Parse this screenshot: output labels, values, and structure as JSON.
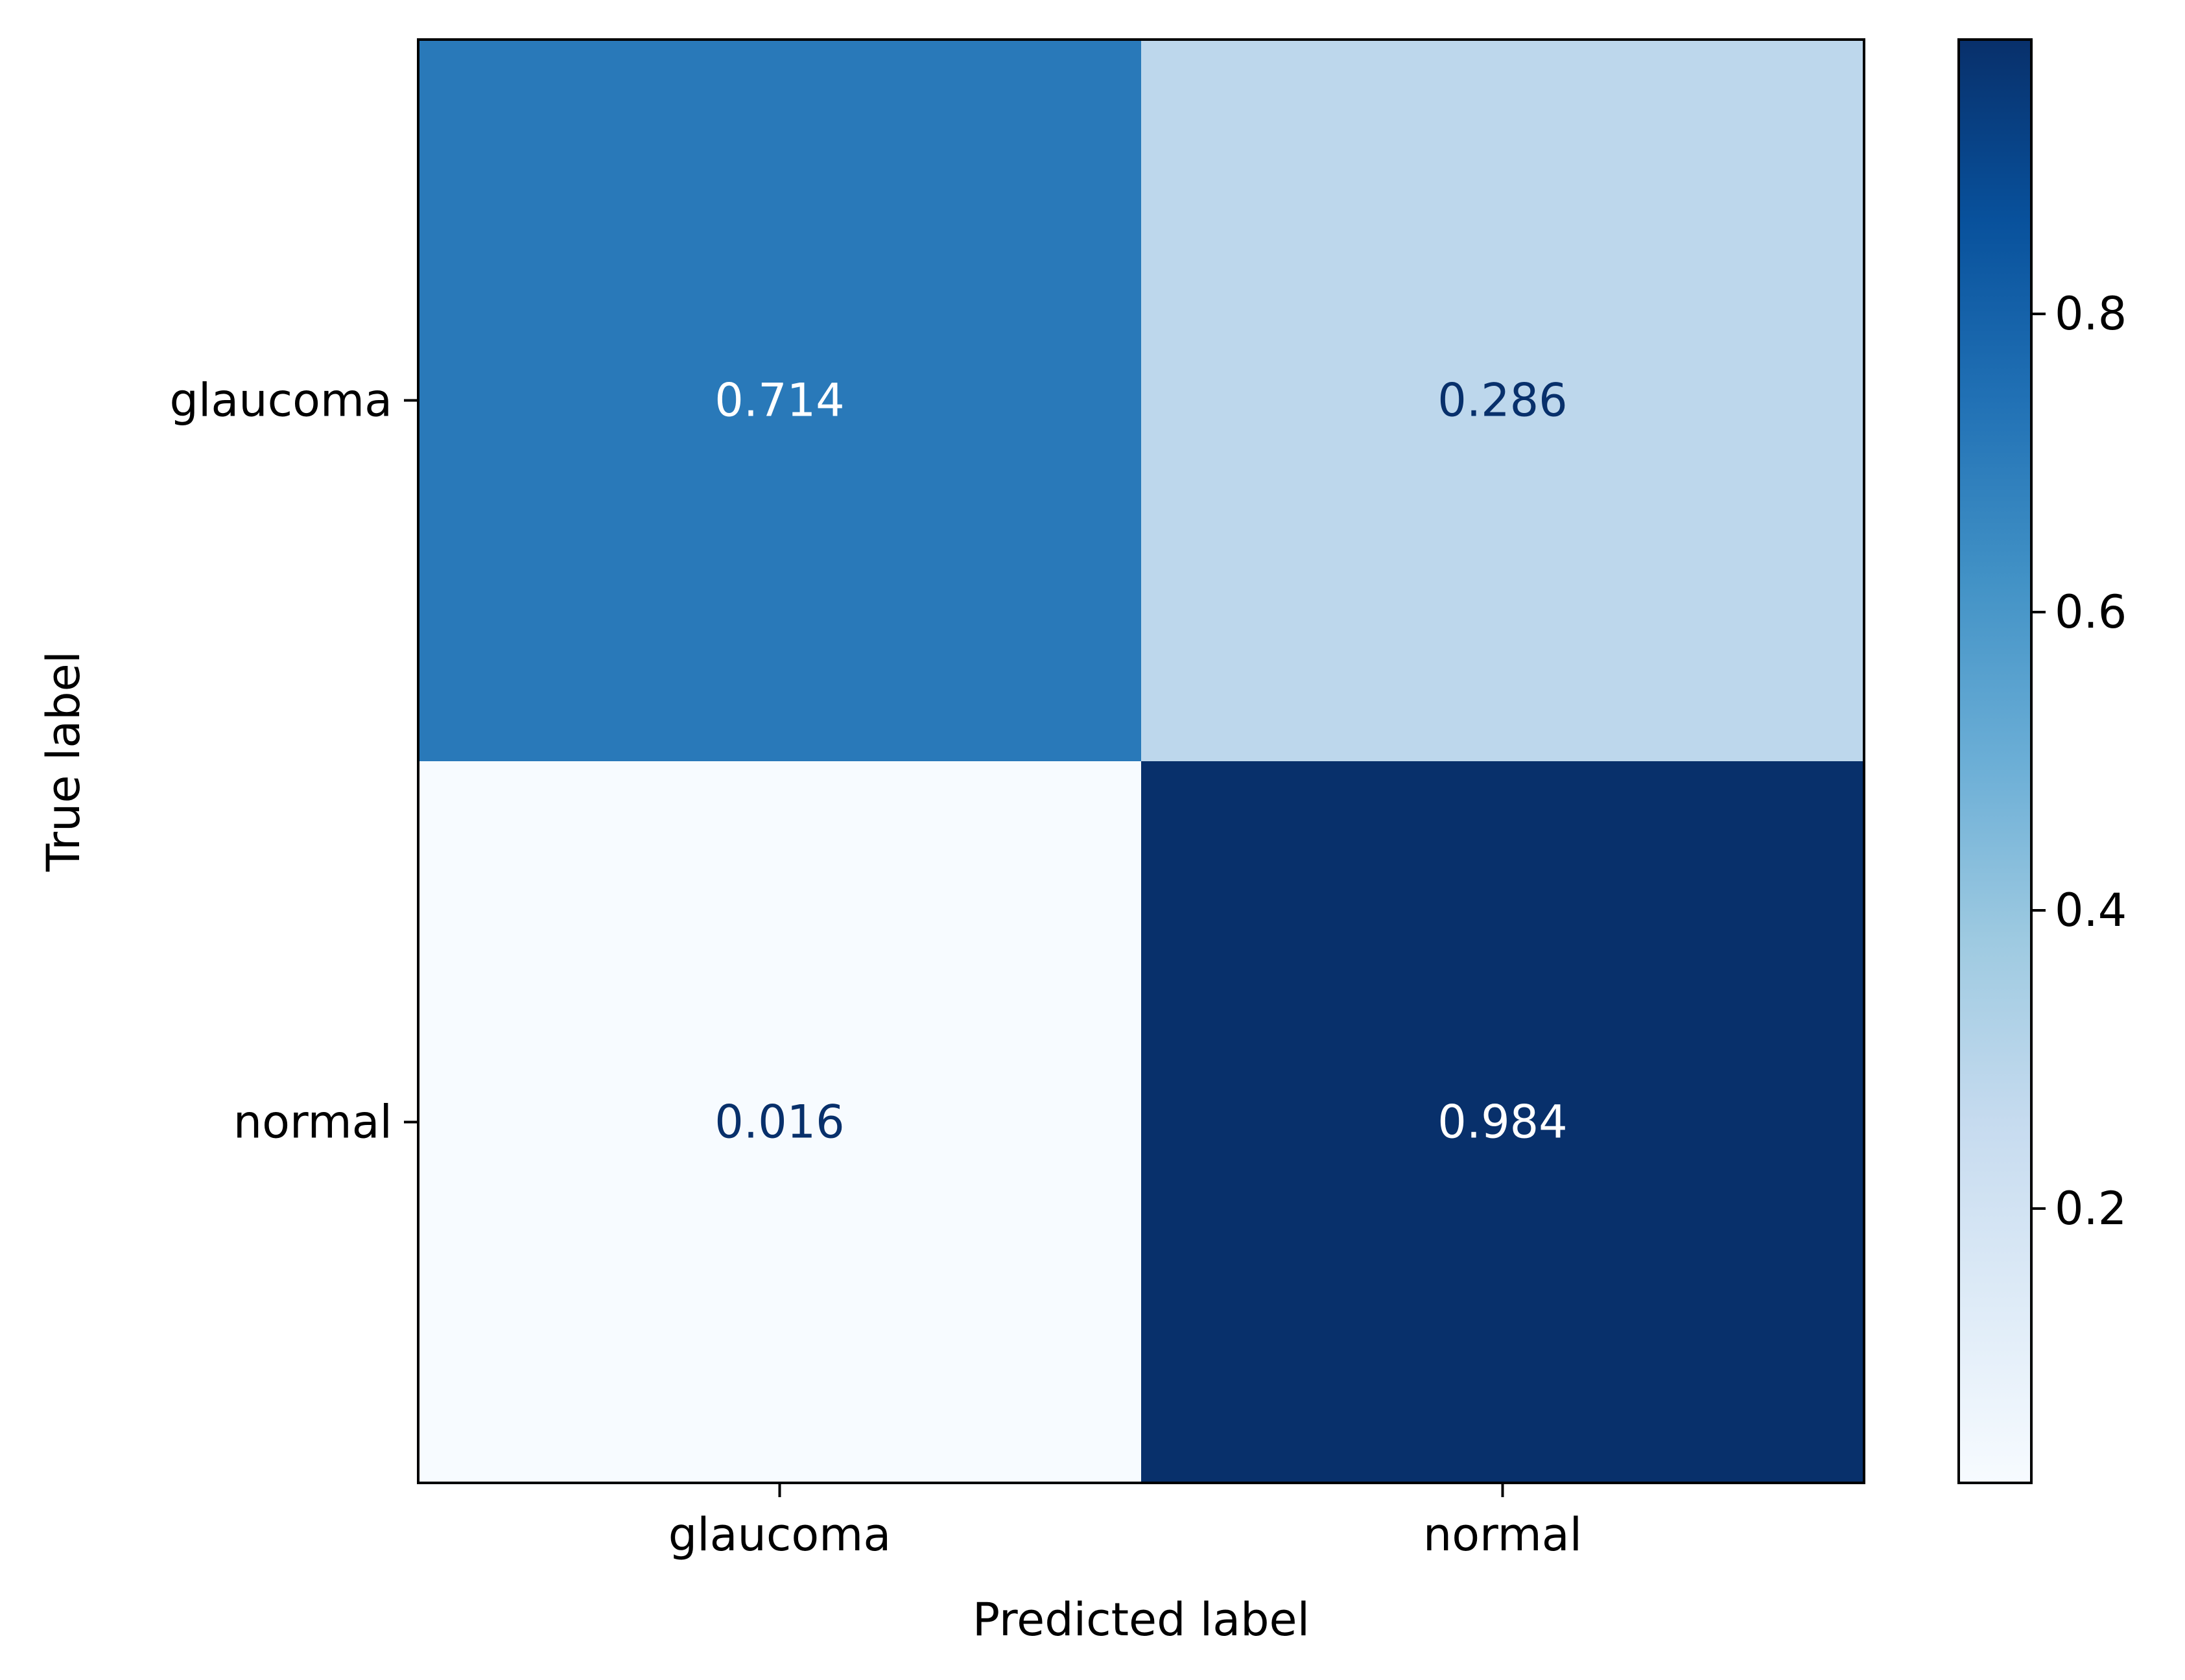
{
  "chart_data": {
    "type": "heatmap",
    "title": "",
    "xlabel": "Predicted label",
    "ylabel": "True label",
    "x_categories": [
      "glaucoma",
      "normal"
    ],
    "y_categories": [
      "glaucoma",
      "normal"
    ],
    "values": [
      [
        0.714,
        0.286
      ],
      [
        0.016,
        0.984
      ]
    ],
    "value_labels": [
      [
        "0.714",
        "0.286"
      ],
      [
        "0.016",
        "0.984"
      ]
    ],
    "colormap": "Blues",
    "colorbar": {
      "range": [
        0.016,
        0.984
      ],
      "ticks": [
        0.2,
        0.4,
        0.6,
        0.8
      ],
      "tick_labels": [
        "0.2",
        "0.4",
        "0.6",
        "0.8"
      ]
    },
    "colors": {
      "text_on_dark": "#ffffff",
      "text_on_light": "#08306b"
    },
    "grid": false
  }
}
